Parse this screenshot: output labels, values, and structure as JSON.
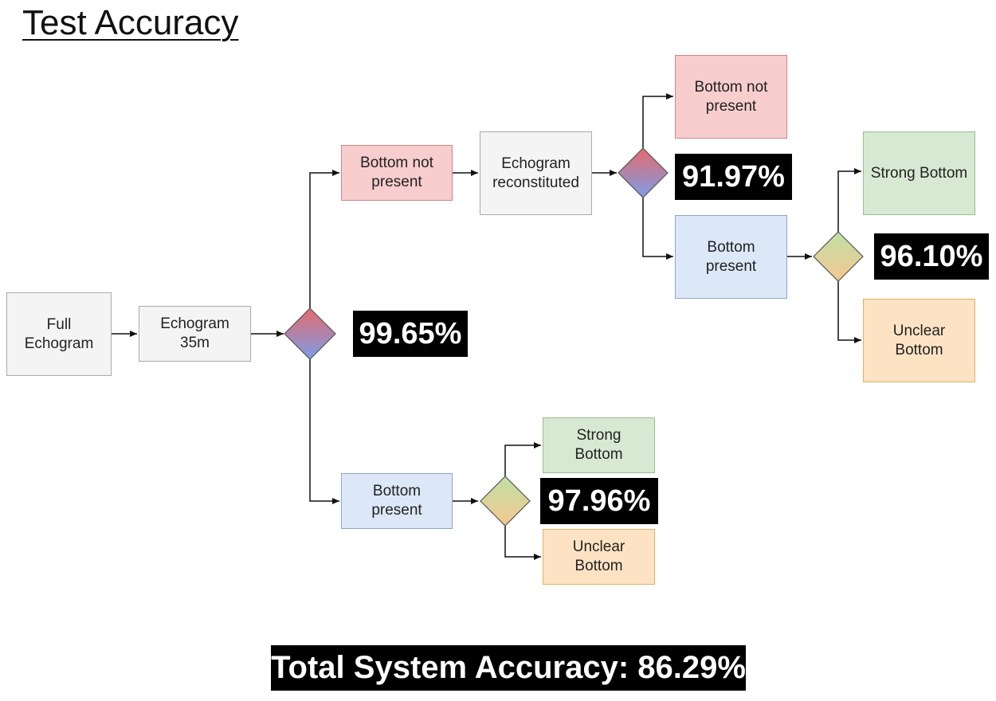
{
  "title": "Test Accuracy",
  "nodes": {
    "full_echogram": "Full\nEchogram",
    "echogram_35m": "Echogram\n35m",
    "bottom_not_present_1": "Bottom not\npresent",
    "echogram_reconstituted": "Echogram\nreconstituted",
    "bottom_not_present_2": "Bottom not\npresent",
    "bottom_present_upper": "Bottom\npresent",
    "strong_bottom_upper": "Strong Bottom",
    "unclear_bottom_upper": "Unclear\nBottom",
    "bottom_present_lower": "Bottom\npresent",
    "strong_bottom_lower": "Strong\nBottom",
    "unclear_bottom_lower": "Unclear\nBottom"
  },
  "accuracies": {
    "first_split": "99.65%",
    "reconstituted_split": "91.97%",
    "upper_bottom_split": "96.10%",
    "lower_bottom_split": "97.96%"
  },
  "total_accuracy": "Total System Accuracy: 86.29%",
  "colors": {
    "gray": "#f4f4f4",
    "red": "#f7cdcd",
    "blue": "#dce8f8",
    "green": "#d8e9d3",
    "orange": "#fde3c4"
  }
}
